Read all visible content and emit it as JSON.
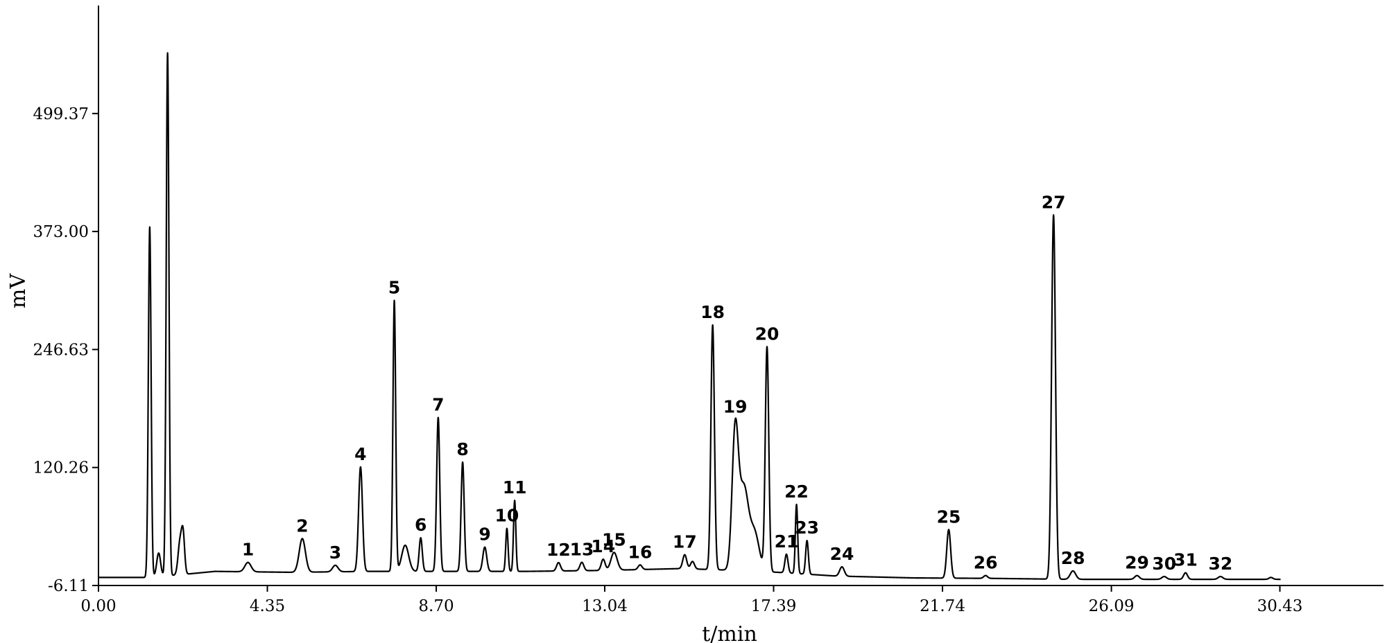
{
  "chart_data": {
    "type": "line",
    "title": "",
    "xlabel": "t/min",
    "ylabel": "mV",
    "xlim": [
      0.0,
      33.1
    ],
    "ylim": [
      -6.11,
      615
    ],
    "x_ticks": [
      "0.00",
      "4.35",
      "8.70",
      "13.04",
      "17.39",
      "21.74",
      "26.09",
      "30.43"
    ],
    "y_ticks": [
      "-6.11",
      "120.26",
      "246.63",
      "373.00",
      "499.37"
    ],
    "grid": false,
    "legend": "none",
    "series": [
      {
        "color": "#000000",
        "baseline": [
          [
            0.0,
            2.5
          ],
          [
            1.2,
            2.5
          ],
          [
            2.0,
            5
          ],
          [
            3.0,
            9
          ],
          [
            5.0,
            8
          ],
          [
            7.0,
            9
          ],
          [
            9.0,
            9
          ],
          [
            11.0,
            9
          ],
          [
            13.0,
            10
          ],
          [
            15.0,
            12
          ],
          [
            16.5,
            10
          ],
          [
            17.5,
            8
          ],
          [
            19.0,
            4
          ],
          [
            21.0,
            2
          ],
          [
            23.0,
            1.5
          ],
          [
            25.0,
            0.5
          ],
          [
            27.0,
            0.5
          ],
          [
            29.0,
            0.5
          ],
          [
            30.5,
            0.5
          ],
          [
            33.1,
            0.5
          ]
        ],
        "peaks": [
          {
            "label": "",
            "t": 1.32,
            "h": 375,
            "w": 0.035
          },
          {
            "label": "",
            "t": 1.55,
            "h": 25,
            "w": 0.05
          },
          {
            "label": "",
            "t": 1.78,
            "h": 560,
            "w": 0.035
          },
          {
            "label": "",
            "t": 2.1,
            "h": 35,
            "w": 0.05
          },
          {
            "label": "",
            "t": 2.18,
            "h": 40,
            "w": 0.04
          },
          {
            "label": "1",
            "t": 3.85,
            "h": 10,
            "w": 0.08
          },
          {
            "label": "2",
            "t": 5.25,
            "h": 36,
            "w": 0.08
          },
          {
            "label": "3",
            "t": 6.1,
            "h": 7,
            "w": 0.07
          },
          {
            "label": "4",
            "t": 6.75,
            "h": 112,
            "w": 0.05
          },
          {
            "label": "5",
            "t": 7.62,
            "h": 290,
            "w": 0.035
          },
          {
            "label": "",
            "t": 7.9,
            "h": 28,
            "w": 0.09
          },
          {
            "label": "6",
            "t": 8.3,
            "h": 36,
            "w": 0.04
          },
          {
            "label": "7",
            "t": 8.75,
            "h": 165,
            "w": 0.04
          },
          {
            "label": "8",
            "t": 9.38,
            "h": 117,
            "w": 0.04
          },
          {
            "label": "9",
            "t": 9.95,
            "h": 26,
            "w": 0.05
          },
          {
            "label": "10",
            "t": 10.52,
            "h": 46,
            "w": 0.03
          },
          {
            "label": "11",
            "t": 10.72,
            "h": 76,
            "w": 0.03
          },
          {
            "label": "12",
            "t": 11.85,
            "h": 9,
            "w": 0.05
          },
          {
            "label": "13",
            "t": 12.45,
            "h": 9,
            "w": 0.05
          },
          {
            "label": "14",
            "t": 13.0,
            "h": 12,
            "w": 0.05
          },
          {
            "label": "15",
            "t": 13.28,
            "h": 19,
            "w": 0.08
          },
          {
            "label": "16",
            "t": 13.95,
            "h": 5,
            "w": 0.05
          },
          {
            "label": "17",
            "t": 15.1,
            "h": 15,
            "w": 0.05
          },
          {
            "label": "",
            "t": 15.3,
            "h": 8,
            "w": 0.05
          },
          {
            "label": "18",
            "t": 15.82,
            "h": 262,
            "w": 0.045
          },
          {
            "label": "19",
            "t": 16.4,
            "h": 145,
            "w": 0.08
          },
          {
            "label": "",
            "t": 16.62,
            "h": 88,
            "w": 0.12
          },
          {
            "label": "",
            "t": 16.9,
            "h": 40,
            "w": 0.12
          },
          {
            "label": "20",
            "t": 17.22,
            "h": 240,
            "w": 0.045
          },
          {
            "label": "21",
            "t": 17.72,
            "h": 20,
            "w": 0.04
          },
          {
            "label": "22",
            "t": 17.98,
            "h": 74,
            "w": 0.03
          },
          {
            "label": "23",
            "t": 18.25,
            "h": 36,
            "w": 0.035
          },
          {
            "label": "24",
            "t": 19.15,
            "h": 10,
            "w": 0.06
          },
          {
            "label": "25",
            "t": 21.9,
            "h": 52,
            "w": 0.05
          },
          {
            "label": "26",
            "t": 22.85,
            "h": 3,
            "w": 0.05
          },
          {
            "label": "27",
            "t": 24.6,
            "h": 390,
            "w": 0.05
          },
          {
            "label": "28",
            "t": 25.1,
            "h": 9,
            "w": 0.07
          },
          {
            "label": "29",
            "t": 26.75,
            "h": 4,
            "w": 0.06
          },
          {
            "label": "30",
            "t": 27.45,
            "h": 3,
            "w": 0.06
          },
          {
            "label": "31",
            "t": 28.0,
            "h": 7,
            "w": 0.05
          },
          {
            "label": "32",
            "t": 28.9,
            "h": 3,
            "w": 0.06
          },
          {
            "label": "",
            "t": 30.2,
            "h": 2,
            "w": 0.05
          }
        ]
      }
    ]
  }
}
